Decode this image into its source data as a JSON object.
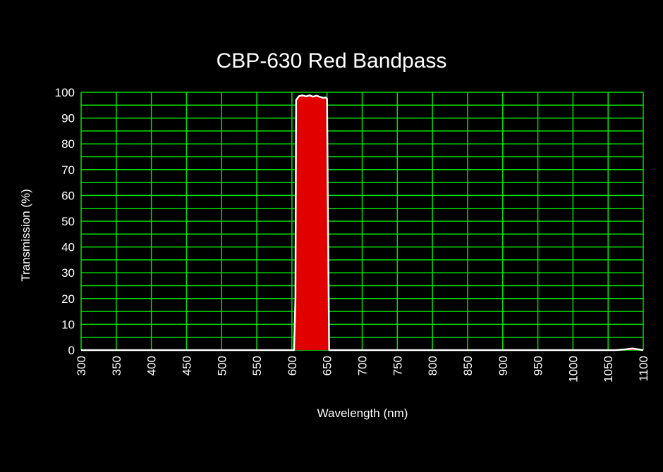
{
  "chart_data": {
    "type": "area",
    "title": "CBP-630 Red Bandpass",
    "xlabel": "Wavelength (nm)",
    "ylabel": "Transmission (%)",
    "xlim": [
      300,
      1100
    ],
    "ylim": [
      0,
      100
    ],
    "x_ticks": [
      300,
      350,
      400,
      450,
      500,
      550,
      600,
      650,
      700,
      750,
      800,
      850,
      900,
      950,
      1000,
      1050,
      1100
    ],
    "y_ticks": [
      0,
      10,
      20,
      30,
      40,
      50,
      60,
      70,
      80,
      90,
      100
    ],
    "grid": true,
    "grid_color": "#00e000",
    "fill_color": "#e00000",
    "line_color": "#ffffff",
    "background": "#000000",
    "series": [
      {
        "x": [
          300,
          600,
          603,
          605,
          606,
          610,
          615,
          620,
          625,
          630,
          635,
          640,
          645,
          648,
          650,
          651,
          653,
          1060,
          1075,
          1085,
          1095,
          1100
        ],
        "y": [
          0,
          0,
          0,
          20,
          97,
          98.5,
          98.8,
          98.4,
          98.8,
          98.3,
          98.7,
          98.2,
          97.8,
          98,
          97.5,
          60,
          0,
          0,
          0.3,
          0.6,
          0.2,
          0
        ]
      }
    ]
  }
}
